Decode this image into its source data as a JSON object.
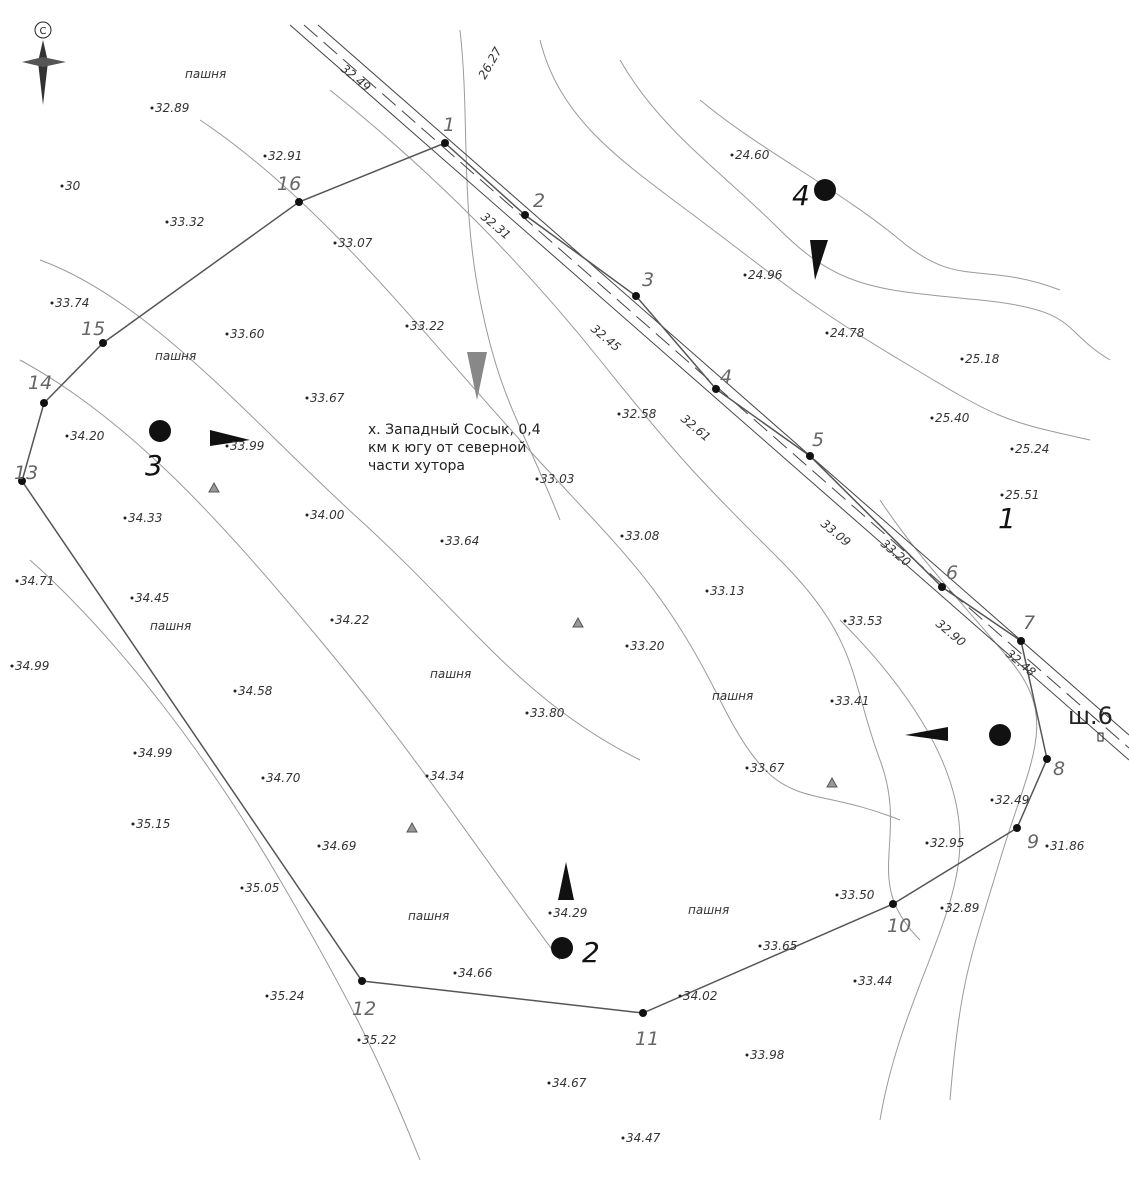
{
  "compass": "С",
  "caption": [
    "х. Западный Сосык, 0,4",
    "км к югу от северной",
    "части хутора"
  ],
  "well": "ш.6",
  "field_label": [
    "пашня",
    "пашня",
    "пашня",
    "пашня",
    "пашня",
    "пашня",
    "пашня"
  ],
  "boundary_points": [
    "1",
    "2",
    "3",
    "4",
    "5",
    "6",
    "7",
    "8",
    "9",
    "10",
    "11",
    "12",
    "13",
    "14",
    "15",
    "16"
  ],
  "photo_points": [
    "1",
    "2",
    "3",
    "4"
  ],
  "elevations": [
    "32.89",
    "32.91",
    "30",
    "33.32",
    "33.07",
    "33.74",
    "33.60",
    "33.22",
    "33.67",
    "34.20",
    "33.99",
    "34.33",
    "34.00",
    "33.64",
    "34.71",
    "34.45",
    "34.22",
    "34.99",
    "34.58",
    "34.99",
    "34.70",
    "34.34",
    "35.15",
    "34.69",
    "35.05",
    "34.29",
    "34.66",
    "35.24",
    "35.22",
    "34.67",
    "34.47",
    "33.98",
    "34.02",
    "33.65",
    "33.44",
    "33.50",
    "32.89",
    "32.95",
    "31.86",
    "32.49",
    "33.67",
    "33.41",
    "33.80",
    "33.20",
    "33.53",
    "33.13",
    "33.08",
    "33.03",
    "32.58",
    "24.60",
    "24.96",
    "24.78",
    "25.18",
    "25.40",
    "25.24",
    "25.51",
    "32.49",
    "32.31",
    "32.45",
    "32.61",
    "33.09",
    "32.90",
    "32.48",
    "33.20",
    "26.27"
  ]
}
